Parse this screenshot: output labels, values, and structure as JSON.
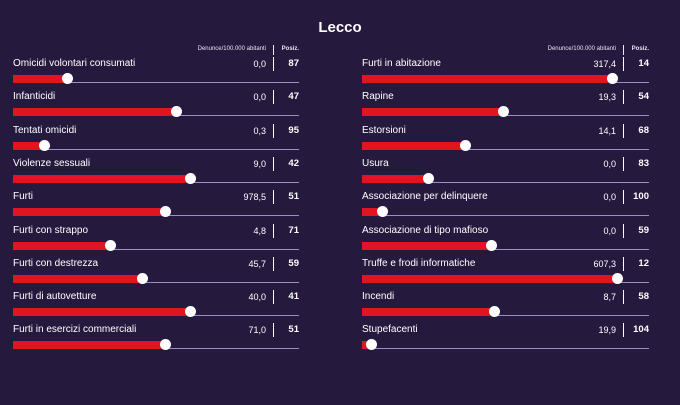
{
  "header": {
    "title": "Lecco"
  },
  "columns": {
    "rate_label": "Denunce/100.000 abitanti",
    "pos_label": "Posiz."
  },
  "chart_data": {
    "type": "bar",
    "title": "Lecco",
    "value_label": "Denunce/100.000 abitanti",
    "rank_label": "Posiz.",
    "left": [
      {
        "label": "Omicidi volontari consumati",
        "value": "0,0",
        "pos": "87",
        "level": 0.19
      },
      {
        "label": "Infanticidi",
        "value": "0,0",
        "pos": "47",
        "level": 0.57
      },
      {
        "label": "Tentati omicidi",
        "value": "0,3",
        "pos": "95",
        "level": 0.11
      },
      {
        "label": "Violenze sessuali",
        "value": "9,0",
        "pos": "42",
        "level": 0.62
      },
      {
        "label": "Furti",
        "value": "978,5",
        "pos": "51",
        "level": 0.53
      },
      {
        "label": "Furti con strappo",
        "value": "4,8",
        "pos": "71",
        "level": 0.34
      },
      {
        "label": "Furti con destrezza",
        "value": "45,7",
        "pos": "59",
        "level": 0.45
      },
      {
        "label": "Furti di autovetture",
        "value": "40,0",
        "pos": "41",
        "level": 0.62
      },
      {
        "label": "Furti in esercizi commerciali",
        "value": "71,0",
        "pos": "51",
        "level": 0.53
      }
    ],
    "right": [
      {
        "label": "Furti in abitazione",
        "value": "317,4",
        "pos": "14",
        "level": 0.87
      },
      {
        "label": "Rapine",
        "value": "19,3",
        "pos": "54",
        "level": 0.49
      },
      {
        "label": "Estorsioni",
        "value": "14,1",
        "pos": "68",
        "level": 0.36
      },
      {
        "label": "Usura",
        "value": "0,0",
        "pos": "83",
        "level": 0.23
      },
      {
        "label": "Associazione per delinquere",
        "value": "0,0",
        "pos": "100",
        "level": 0.07
      },
      {
        "label": "Associazione di tipo mafioso",
        "value": "0,0",
        "pos": "59",
        "level": 0.45
      },
      {
        "label": "Truffe e frodi informatiche",
        "value": "607,3",
        "pos": "12",
        "level": 0.89
      },
      {
        "label": "Incendi",
        "value": "8,7",
        "pos": "58",
        "level": 0.46
      },
      {
        "label": "Stupefacenti",
        "value": "19,9",
        "pos": "104",
        "level": 0.03
      }
    ]
  },
  "colors": {
    "background": "#251a3e",
    "bar": "#e0151f",
    "track": "#9a8fc7",
    "text": "#ffffff"
  }
}
